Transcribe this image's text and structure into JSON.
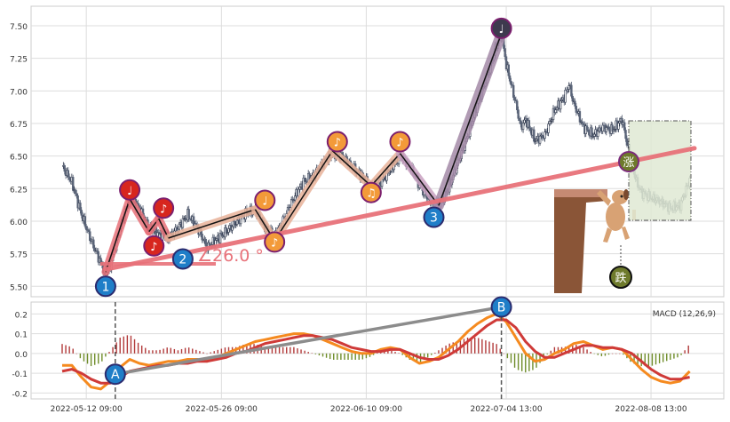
{
  "chart_data": [
    {
      "type": "line",
      "subtype": "candlestick-with-wave-annotations",
      "y_ticks": [
        "5.50",
        "5.75",
        "6.00",
        "6.25",
        "6.50",
        "6.75",
        "7.00",
        "7.25",
        "7.50"
      ],
      "ylim": [
        5.42,
        7.65
      ],
      "grid": true,
      "price_path": [
        {
          "t": 0,
          "v": 6.42
        },
        {
          "t": 2,
          "v": 6.3
        },
        {
          "t": 4,
          "v": 6.05
        },
        {
          "t": 6,
          "v": 5.85
        },
        {
          "t": 8,
          "v": 5.68
        },
        {
          "t": 9,
          "v": 5.6
        },
        {
          "t": 10,
          "v": 5.66
        },
        {
          "t": 12,
          "v": 5.95
        },
        {
          "t": 14,
          "v": 6.18
        },
        {
          "t": 16,
          "v": 6.1
        },
        {
          "t": 18,
          "v": 5.95
        },
        {
          "t": 20,
          "v": 5.9
        },
        {
          "t": 22,
          "v": 5.87
        },
        {
          "t": 24,
          "v": 5.95
        },
        {
          "t": 26,
          "v": 6.05
        },
        {
          "t": 28,
          "v": 5.95
        },
        {
          "t": 30,
          "v": 5.8
        },
        {
          "t": 32,
          "v": 5.86
        },
        {
          "t": 34,
          "v": 5.92
        },
        {
          "t": 36,
          "v": 5.99
        },
        {
          "t": 38,
          "v": 6.06
        },
        {
          "t": 40,
          "v": 6.09
        },
        {
          "t": 42,
          "v": 5.95
        },
        {
          "t": 44,
          "v": 5.88
        },
        {
          "t": 46,
          "v": 6.02
        },
        {
          "t": 48,
          "v": 6.18
        },
        {
          "t": 50,
          "v": 6.3
        },
        {
          "t": 52,
          "v": 6.35
        },
        {
          "t": 54,
          "v": 6.45
        },
        {
          "t": 56,
          "v": 6.52
        },
        {
          "t": 58,
          "v": 6.5
        },
        {
          "t": 60,
          "v": 6.42
        },
        {
          "t": 62,
          "v": 6.35
        },
        {
          "t": 64,
          "v": 6.26
        },
        {
          "t": 66,
          "v": 6.3
        },
        {
          "t": 68,
          "v": 6.4
        },
        {
          "t": 70,
          "v": 6.5
        },
        {
          "t": 72,
          "v": 6.42
        },
        {
          "t": 74,
          "v": 6.28
        },
        {
          "t": 76,
          "v": 6.16
        },
        {
          "t": 78,
          "v": 6.12
        },
        {
          "t": 80,
          "v": 6.25
        },
        {
          "t": 82,
          "v": 6.45
        },
        {
          "t": 84,
          "v": 6.65
        },
        {
          "t": 86,
          "v": 6.9
        },
        {
          "t": 88,
          "v": 7.1
        },
        {
          "t": 90,
          "v": 7.35
        },
        {
          "t": 91,
          "v": 7.44
        },
        {
          "t": 92,
          "v": 7.2
        },
        {
          "t": 93,
          "v": 7.05
        },
        {
          "t": 94,
          "v": 6.9
        },
        {
          "t": 95,
          "v": 6.72
        },
        {
          "t": 96,
          "v": 6.78
        },
        {
          "t": 98,
          "v": 6.62
        },
        {
          "t": 100,
          "v": 6.66
        },
        {
          "t": 102,
          "v": 6.85
        },
        {
          "t": 104,
          "v": 6.95
        },
        {
          "t": 105,
          "v": 7.05
        },
        {
          "t": 106,
          "v": 6.9
        },
        {
          "t": 108,
          "v": 6.72
        },
        {
          "t": 110,
          "v": 6.66
        },
        {
          "t": 112,
          "v": 6.72
        },
        {
          "t": 114,
          "v": 6.7
        },
        {
          "t": 116,
          "v": 6.78
        },
        {
          "t": 117,
          "v": 6.6
        },
        {
          "t": 118,
          "v": 6.45
        },
        {
          "t": 119,
          "v": 6.3
        },
        {
          "t": 120,
          "v": 6.22
        },
        {
          "t": 122,
          "v": 6.18
        },
        {
          "t": 124,
          "v": 6.15
        },
        {
          "t": 126,
          "v": 6.1
        },
        {
          "t": 128,
          "v": 6.12
        },
        {
          "t": 129,
          "v": 6.22
        },
        {
          "t": 130,
          "v": 6.32
        }
      ],
      "wave_points": [
        {
          "t": 9,
          "v": 5.61
        },
        {
          "t": 14,
          "v": 6.17
        },
        {
          "t": 18,
          "v": 5.92
        },
        {
          "t": 20,
          "v": 6.02
        },
        {
          "t": 22,
          "v": 5.87
        },
        {
          "t": 40,
          "v": 6.09
        },
        {
          "t": 44,
          "v": 5.85
        },
        {
          "t": 56,
          "v": 6.54
        },
        {
          "t": 64,
          "v": 6.27
        },
        {
          "t": 70,
          "v": 6.52
        },
        {
          "t": 78,
          "v": 6.12
        },
        {
          "t": 91,
          "v": 7.44
        }
      ],
      "wave_labels": [
        {
          "t": 9,
          "v": 5.5,
          "text": "1",
          "color": "#1f7ec8"
        },
        {
          "t": 14,
          "v": 6.24,
          "text": "♩",
          "color": "#d7261e"
        },
        {
          "t": 19,
          "v": 5.81,
          "text": "♪",
          "color": "#d7261e"
        },
        {
          "t": 21,
          "v": 6.1,
          "text": "♪",
          "color": "#d7261e"
        },
        {
          "t": 25,
          "v": 5.71,
          "text": "2",
          "color": "#1f7ec8"
        },
        {
          "t": 42,
          "v": 6.16,
          "text": "♩",
          "color": "#f39a39"
        },
        {
          "t": 44,
          "v": 5.84,
          "text": "♪",
          "color": "#f39a39"
        },
        {
          "t": 57,
          "v": 6.61,
          "text": "♪",
          "color": "#f39a39"
        },
        {
          "t": 64,
          "v": 6.22,
          "text": "♫",
          "color": "#f39a39"
        },
        {
          "t": 70,
          "v": 6.61,
          "text": "♪",
          "color": "#f39a39"
        },
        {
          "t": 77,
          "v": 6.03,
          "text": "3",
          "color": "#1f7ec8"
        },
        {
          "t": 91,
          "v": 7.48,
          "text": "♩",
          "color": "#3d3a4e"
        }
      ],
      "trend_line": {
        "from": {
          "t": 9,
          "v": 5.63
        },
        "to": {
          "t": 131,
          "v": 6.56
        },
        "color": "#e8727a"
      },
      "angle_label": "∠26.0 °",
      "signal_labels": [
        {
          "text": "涨",
          "color": "#6e7a2c"
        },
        {
          "text": "跌",
          "color": "#6e7a2c"
        }
      ]
    },
    {
      "type": "line",
      "subtype": "macd",
      "legend": "MACD (12,26,9)",
      "x_ticks": [
        "2022-05-12 09:00",
        "2022-05-26 09:00",
        "2022-06-10 09:00",
        "2022-07-04 13:00",
        "2022-08-08 13:00"
      ],
      "y_ticks": [
        "0.2",
        "0.1",
        "0.0",
        "-0.1",
        "-0.2"
      ],
      "ylim": [
        -0.23,
        0.26
      ],
      "markers": [
        {
          "text": "A",
          "t": 11,
          "v": -0.105
        },
        {
          "text": "B",
          "t": 91,
          "v": 0.235
        }
      ],
      "dif": [
        {
          "t": 0,
          "v": -0.06
        },
        {
          "t": 2,
          "v": -0.06
        },
        {
          "t": 4,
          "v": -0.12
        },
        {
          "t": 6,
          "v": -0.17
        },
        {
          "t": 8,
          "v": -0.18
        },
        {
          "t": 10,
          "v": -0.14
        },
        {
          "t": 12,
          "v": -0.07
        },
        {
          "t": 14,
          "v": -0.03
        },
        {
          "t": 16,
          "v": -0.05
        },
        {
          "t": 18,
          "v": -0.06
        },
        {
          "t": 20,
          "v": -0.05
        },
        {
          "t": 22,
          "v": -0.04
        },
        {
          "t": 24,
          "v": -0.04
        },
        {
          "t": 26,
          "v": -0.03
        },
        {
          "t": 28,
          "v": -0.03
        },
        {
          "t": 30,
          "v": -0.04
        },
        {
          "t": 32,
          "v": -0.02
        },
        {
          "t": 34,
          "v": 0.0
        },
        {
          "t": 36,
          "v": 0.02
        },
        {
          "t": 38,
          "v": 0.04
        },
        {
          "t": 40,
          "v": 0.06
        },
        {
          "t": 42,
          "v": 0.07
        },
        {
          "t": 44,
          "v": 0.08
        },
        {
          "t": 46,
          "v": 0.09
        },
        {
          "t": 48,
          "v": 0.1
        },
        {
          "t": 50,
          "v": 0.1
        },
        {
          "t": 52,
          "v": 0.09
        },
        {
          "t": 54,
          "v": 0.07
        },
        {
          "t": 56,
          "v": 0.05
        },
        {
          "t": 58,
          "v": 0.03
        },
        {
          "t": 60,
          "v": 0.01
        },
        {
          "t": 62,
          "v": 0.0
        },
        {
          "t": 64,
          "v": 0.0
        },
        {
          "t": 66,
          "v": 0.02
        },
        {
          "t": 68,
          "v": 0.03
        },
        {
          "t": 70,
          "v": 0.02
        },
        {
          "t": 72,
          "v": -0.02
        },
        {
          "t": 74,
          "v": -0.05
        },
        {
          "t": 76,
          "v": -0.04
        },
        {
          "t": 78,
          "v": -0.02
        },
        {
          "t": 80,
          "v": 0.02
        },
        {
          "t": 82,
          "v": 0.06
        },
        {
          "t": 84,
          "v": 0.11
        },
        {
          "t": 86,
          "v": 0.15
        },
        {
          "t": 88,
          "v": 0.18
        },
        {
          "t": 90,
          "v": 0.2
        },
        {
          "t": 92,
          "v": 0.16
        },
        {
          "t": 94,
          "v": 0.08
        },
        {
          "t": 96,
          "v": 0.0
        },
        {
          "t": 98,
          "v": -0.04
        },
        {
          "t": 100,
          "v": -0.03
        },
        {
          "t": 102,
          "v": 0.0
        },
        {
          "t": 104,
          "v": 0.02
        },
        {
          "t": 106,
          "v": 0.05
        },
        {
          "t": 108,
          "v": 0.06
        },
        {
          "t": 110,
          "v": 0.04
        },
        {
          "t": 112,
          "v": 0.02
        },
        {
          "t": 114,
          "v": 0.03
        },
        {
          "t": 116,
          "v": 0.02
        },
        {
          "t": 118,
          "v": -0.03
        },
        {
          "t": 120,
          "v": -0.08
        },
        {
          "t": 122,
          "v": -0.12
        },
        {
          "t": 124,
          "v": -0.14
        },
        {
          "t": 126,
          "v": -0.15
        },
        {
          "t": 128,
          "v": -0.14
        },
        {
          "t": 130,
          "v": -0.09
        }
      ],
      "dea": [
        {
          "t": 0,
          "v": -0.09
        },
        {
          "t": 2,
          "v": -0.08
        },
        {
          "t": 4,
          "v": -0.1
        },
        {
          "t": 6,
          "v": -0.13
        },
        {
          "t": 8,
          "v": -0.15
        },
        {
          "t": 10,
          "v": -0.15
        },
        {
          "t": 12,
          "v": -0.12
        },
        {
          "t": 14,
          "v": -0.09
        },
        {
          "t": 16,
          "v": -0.08
        },
        {
          "t": 18,
          "v": -0.07
        },
        {
          "t": 20,
          "v": -0.06
        },
        {
          "t": 22,
          "v": -0.06
        },
        {
          "t": 24,
          "v": -0.05
        },
        {
          "t": 26,
          "v": -0.05
        },
        {
          "t": 28,
          "v": -0.04
        },
        {
          "t": 30,
          "v": -0.04
        },
        {
          "t": 32,
          "v": -0.03
        },
        {
          "t": 34,
          "v": -0.02
        },
        {
          "t": 36,
          "v": 0.0
        },
        {
          "t": 38,
          "v": 0.01
        },
        {
          "t": 40,
          "v": 0.03
        },
        {
          "t": 42,
          "v": 0.05
        },
        {
          "t": 44,
          "v": 0.06
        },
        {
          "t": 46,
          "v": 0.07
        },
        {
          "t": 48,
          "v": 0.08
        },
        {
          "t": 50,
          "v": 0.09
        },
        {
          "t": 52,
          "v": 0.09
        },
        {
          "t": 54,
          "v": 0.08
        },
        {
          "t": 56,
          "v": 0.07
        },
        {
          "t": 58,
          "v": 0.05
        },
        {
          "t": 60,
          "v": 0.03
        },
        {
          "t": 62,
          "v": 0.02
        },
        {
          "t": 64,
          "v": 0.01
        },
        {
          "t": 66,
          "v": 0.01
        },
        {
          "t": 68,
          "v": 0.02
        },
        {
          "t": 70,
          "v": 0.02
        },
        {
          "t": 72,
          "v": 0.0
        },
        {
          "t": 74,
          "v": -0.02
        },
        {
          "t": 76,
          "v": -0.03
        },
        {
          "t": 78,
          "v": -0.03
        },
        {
          "t": 80,
          "v": -0.01
        },
        {
          "t": 82,
          "v": 0.02
        },
        {
          "t": 84,
          "v": 0.06
        },
        {
          "t": 86,
          "v": 0.1
        },
        {
          "t": 88,
          "v": 0.14
        },
        {
          "t": 90,
          "v": 0.17
        },
        {
          "t": 92,
          "v": 0.17
        },
        {
          "t": 94,
          "v": 0.13
        },
        {
          "t": 96,
          "v": 0.06
        },
        {
          "t": 98,
          "v": 0.01
        },
        {
          "t": 100,
          "v": -0.02
        },
        {
          "t": 102,
          "v": -0.02
        },
        {
          "t": 104,
          "v": 0.0
        },
        {
          "t": 106,
          "v": 0.02
        },
        {
          "t": 108,
          "v": 0.04
        },
        {
          "t": 110,
          "v": 0.04
        },
        {
          "t": 112,
          "v": 0.03
        },
        {
          "t": 114,
          "v": 0.03
        },
        {
          "t": 116,
          "v": 0.02
        },
        {
          "t": 118,
          "v": 0.0
        },
        {
          "t": 120,
          "v": -0.04
        },
        {
          "t": 122,
          "v": -0.08
        },
        {
          "t": 124,
          "v": -0.11
        },
        {
          "t": 126,
          "v": -0.13
        },
        {
          "t": 128,
          "v": -0.13
        },
        {
          "t": 130,
          "v": -0.12
        }
      ],
      "divergence_line": {
        "from": {
          "t": 11,
          "v": -0.105
        },
        "to": {
          "t": 91,
          "v": 0.235
        }
      },
      "colors": {
        "dif": "#f58a1f",
        "dea": "#cf3a38",
        "hist_pos": "#b23a3a",
        "hist_neg": "#6f8d2a",
        "divergence": "#8c8c8c"
      }
    }
  ]
}
